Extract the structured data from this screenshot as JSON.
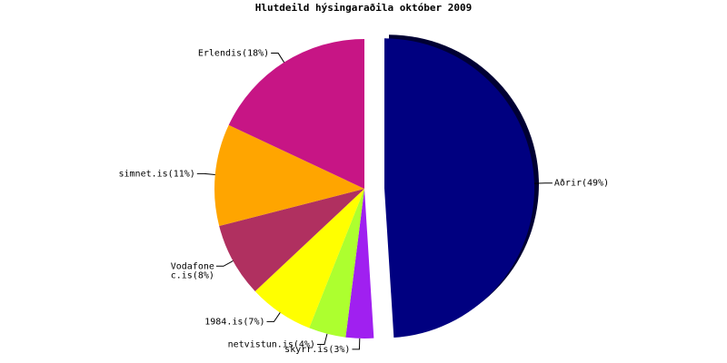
{
  "chart_data": {
    "type": "pie",
    "title": "Hlutdeild hýsingaraðila október 2009",
    "categories": [
      "Aðrir",
      "skyrr.is",
      "netvistun.is",
      "1984.is",
      "Vodafone c.is",
      "simnet.is",
      "Erlendis"
    ],
    "values": [
      49,
      3,
      4,
      7,
      8,
      11,
      18
    ],
    "value_labels": [
      "(49%)",
      "(3%)",
      "(4%)",
      "(7%)",
      "(8%)",
      "(11%)",
      "(18%)"
    ],
    "colors": [
      "#000080",
      "#a020f0",
      "#adff2f",
      "#ffff00",
      "#b03060",
      "#ffa500",
      "#c71585"
    ]
  }
}
